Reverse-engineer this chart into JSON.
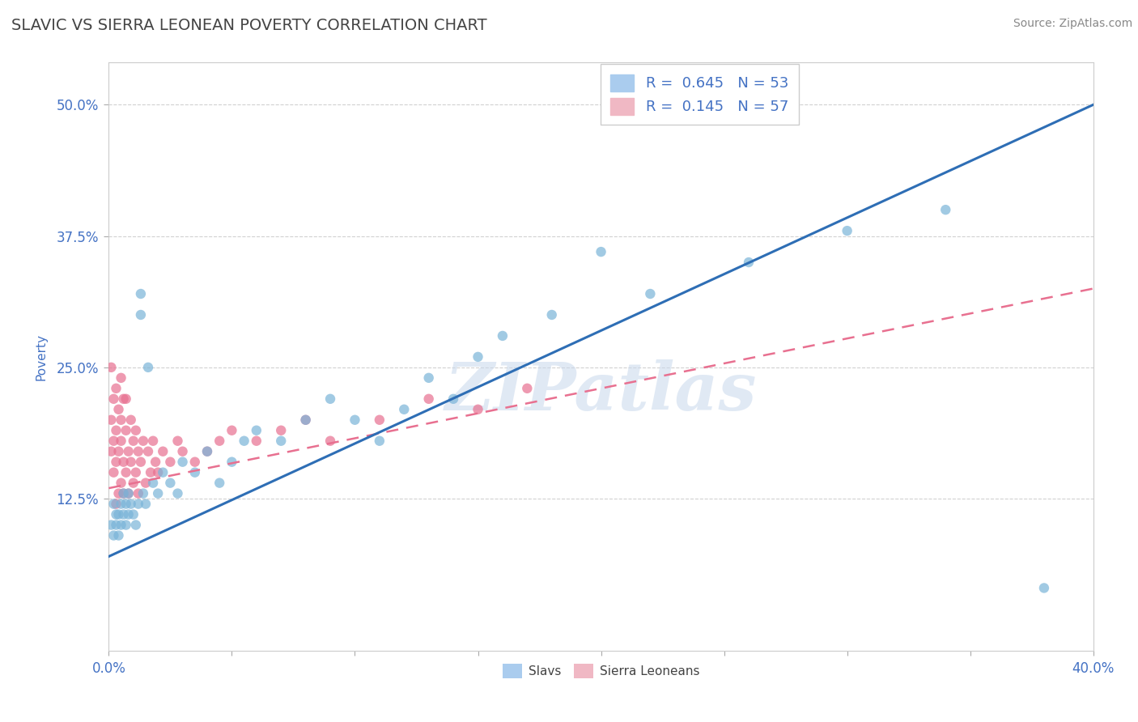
{
  "title": "SLAVIC VS SIERRA LEONEAN POVERTY CORRELATION CHART",
  "source_text": "Source: ZipAtlas.com",
  "ylabel": "Poverty",
  "xlim": [
    0.0,
    0.4
  ],
  "ylim": [
    -0.02,
    0.54
  ],
  "yticks": [
    0.125,
    0.25,
    0.375,
    0.5
  ],
  "yticklabels": [
    "12.5%",
    "25.0%",
    "37.5%",
    "50.0%"
  ],
  "xticks": [
    0.0,
    0.05,
    0.1,
    0.15,
    0.2,
    0.25,
    0.3,
    0.35,
    0.4
  ],
  "xticklabels": [
    "0.0%",
    "",
    "",
    "",
    "",
    "",
    "",
    "",
    "40.0%"
  ],
  "grid_color": "#cccccc",
  "background_color": "#ffffff",
  "watermark": "ZIPatlas",
  "slavs": {
    "name": "Slavs",
    "R": "0.645",
    "N": "53",
    "dot_color": "#7ab4d8",
    "line_color": "#2e6eb5",
    "line_style": "solid",
    "trend_x0": 0.0,
    "trend_y0": 0.07,
    "trend_x1": 0.4,
    "trend_y1": 0.5,
    "x": [
      0.001,
      0.002,
      0.002,
      0.003,
      0.003,
      0.004,
      0.004,
      0.005,
      0.005,
      0.006,
      0.006,
      0.007,
      0.007,
      0.008,
      0.008,
      0.009,
      0.01,
      0.011,
      0.012,
      0.013,
      0.013,
      0.014,
      0.015,
      0.016,
      0.018,
      0.02,
      0.022,
      0.025,
      0.028,
      0.03,
      0.035,
      0.04,
      0.045,
      0.05,
      0.055,
      0.06,
      0.07,
      0.08,
      0.09,
      0.1,
      0.11,
      0.12,
      0.13,
      0.14,
      0.15,
      0.16,
      0.18,
      0.2,
      0.22,
      0.26,
      0.3,
      0.34,
      0.38
    ],
    "y": [
      0.1,
      0.09,
      0.12,
      0.11,
      0.1,
      0.09,
      0.11,
      0.1,
      0.12,
      0.11,
      0.13,
      0.1,
      0.12,
      0.11,
      0.13,
      0.12,
      0.11,
      0.1,
      0.12,
      0.3,
      0.32,
      0.13,
      0.12,
      0.25,
      0.14,
      0.13,
      0.15,
      0.14,
      0.13,
      0.16,
      0.15,
      0.17,
      0.14,
      0.16,
      0.18,
      0.19,
      0.18,
      0.2,
      0.22,
      0.2,
      0.18,
      0.21,
      0.24,
      0.22,
      0.26,
      0.28,
      0.3,
      0.36,
      0.32,
      0.35,
      0.38,
      0.4,
      0.04
    ]
  },
  "sierra": {
    "name": "Sierra Leoneans",
    "R": "0.145",
    "N": "57",
    "dot_color": "#e87090",
    "line_color": "#e87090",
    "line_style": "dashed",
    "trend_x0": 0.0,
    "trend_y0": 0.135,
    "trend_x1": 0.4,
    "trend_y1": 0.325,
    "x": [
      0.001,
      0.001,
      0.001,
      0.002,
      0.002,
      0.002,
      0.003,
      0.003,
      0.003,
      0.003,
      0.004,
      0.004,
      0.004,
      0.005,
      0.005,
      0.005,
      0.005,
      0.006,
      0.006,
      0.006,
      0.007,
      0.007,
      0.007,
      0.008,
      0.008,
      0.009,
      0.009,
      0.01,
      0.01,
      0.011,
      0.011,
      0.012,
      0.012,
      0.013,
      0.014,
      0.015,
      0.016,
      0.017,
      0.018,
      0.019,
      0.02,
      0.022,
      0.025,
      0.028,
      0.03,
      0.035,
      0.04,
      0.045,
      0.05,
      0.06,
      0.07,
      0.08,
      0.09,
      0.11,
      0.13,
      0.15,
      0.17
    ],
    "y": [
      0.2,
      0.25,
      0.17,
      0.22,
      0.18,
      0.15,
      0.23,
      0.19,
      0.16,
      0.12,
      0.21,
      0.17,
      0.13,
      0.24,
      0.18,
      0.14,
      0.2,
      0.22,
      0.16,
      0.13,
      0.19,
      0.15,
      0.22,
      0.17,
      0.13,
      0.2,
      0.16,
      0.18,
      0.14,
      0.19,
      0.15,
      0.17,
      0.13,
      0.16,
      0.18,
      0.14,
      0.17,
      0.15,
      0.18,
      0.16,
      0.15,
      0.17,
      0.16,
      0.18,
      0.17,
      0.16,
      0.17,
      0.18,
      0.19,
      0.18,
      0.19,
      0.2,
      0.18,
      0.2,
      0.22,
      0.21,
      0.23
    ]
  },
  "legend_r_label_0": "R = ",
  "legend_r_val_0": "0.645",
  "legend_n_label_0": "N = ",
  "legend_n_val_0": "53",
  "legend_r_label_1": "R = ",
  "legend_r_val_1": "0.145",
  "legend_n_label_1": "N = ",
  "legend_n_val_1": "57",
  "title_color": "#444444",
  "tick_color": "#4472c4",
  "title_fontsize": 14,
  "axis_fontsize": 11,
  "tick_fontsize": 12,
  "source_fontsize": 10,
  "legend_fontsize": 13
}
